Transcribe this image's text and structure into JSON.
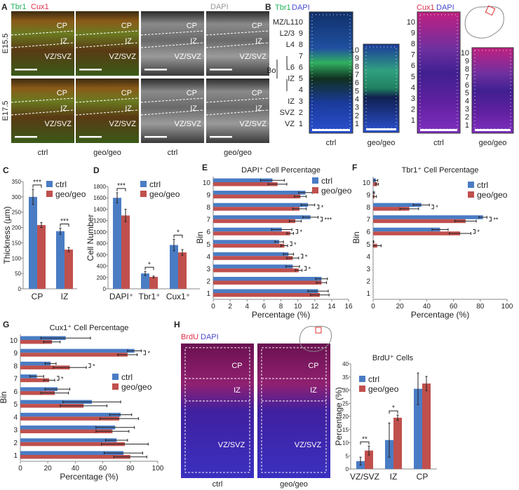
{
  "panel_labels": {
    "a": "A",
    "b": "B",
    "c": "C",
    "d": "D",
    "e": "E",
    "f": "F",
    "g": "G",
    "h": "H"
  },
  "colors": {
    "ctrl": "#4a7cc4",
    "geo": "#c0504d",
    "tbr1": "#1fb55a",
    "cux1": "#e0304a",
    "dapi": "#4a4ad0"
  },
  "panel_a": {
    "stain_tbr1": "Tbr1",
    "stain_cux1": "Cux1",
    "stain_dapi": "DAPI",
    "rows": [
      "E15.5",
      "E17.5"
    ],
    "columns": [
      "ctrl",
      "geo/geo",
      "ctrl",
      "geo/geo"
    ],
    "regions": [
      "CP",
      "IZ",
      "VZ/SVZ"
    ]
  },
  "panel_b": {
    "left_marker": "Tbr1",
    "left_counter": "DAPI",
    "right_marker": "Cux1",
    "right_counter": "DAPI",
    "layers": [
      "VZ",
      "SVZ",
      "IZ",
      "",
      "IZ",
      "L6",
      "",
      "L4",
      "L2/3",
      "MZ/L1"
    ],
    "bins": [
      "1",
      "2",
      "3",
      "4",
      "5",
      "6",
      "7",
      "8",
      "9",
      "10"
    ],
    "bracket_label": "Bo",
    "columns": [
      "ctrl",
      "geo/geo",
      "ctrl",
      "geo/geo"
    ]
  },
  "panel_h": {
    "marker": "BrdU",
    "counter": "DAPI",
    "regions": [
      "CP",
      "IZ",
      "VZ/SVZ"
    ],
    "columns": [
      "ctrl",
      "geo/geo"
    ]
  },
  "chart_data": [
    {
      "id": "C",
      "type": "bar",
      "orientation": "vertical",
      "title": "",
      "xlabel": "",
      "ylabel": "Thickness (µm)",
      "categories": [
        "CP",
        "IZ"
      ],
      "ylim": [
        0,
        350
      ],
      "yticks": [
        "0",
        "50",
        "100",
        "150",
        "200",
        "250",
        "300",
        "350"
      ],
      "series": [
        {
          "name": "ctrl",
          "values": [
            300,
            188
          ],
          "errors": [
            25,
            10
          ]
        },
        {
          "name": "geo/geo",
          "values": [
            208,
            128
          ],
          "errors": [
            8,
            7
          ]
        }
      ],
      "significance": [
        "***",
        "***"
      ],
      "legend": "top-right",
      "grid": false
    },
    {
      "id": "D",
      "type": "bar",
      "orientation": "vertical",
      "title": "",
      "xlabel": "",
      "ylabel": "Cell Number",
      "categories": [
        "DAPI⁺",
        "Tbr1⁺",
        "Cux1⁺"
      ],
      "ylim": [
        0,
        1800
      ],
      "yticks": [
        "0",
        "200",
        "400",
        "600",
        "800",
        "1000",
        "1200",
        "1400",
        "1600",
        "1800"
      ],
      "series": [
        {
          "name": "ctrl",
          "values": [
            1600,
            270,
            770
          ],
          "errors": [
            90,
            35,
            100
          ]
        },
        {
          "name": "geo/geo",
          "values": [
            1290,
            210,
            640
          ],
          "errors": [
            110,
            15,
            50
          ]
        }
      ],
      "significance": [
        "***",
        "*",
        "*"
      ],
      "legend": "top-right",
      "grid": false
    },
    {
      "id": "E",
      "type": "bar",
      "orientation": "horizontal",
      "title": "DAPI⁺ Cell Percentage",
      "xlabel": "Percentage (%)",
      "ylabel": "Bin",
      "categories": [
        "1",
        "2",
        "3",
        "4",
        "5",
        "6",
        "7",
        "8",
        "9",
        "10"
      ],
      "xlim": [
        0,
        16
      ],
      "xticks": [
        "0",
        "2",
        "4",
        "6",
        "8",
        "10",
        "12",
        "14",
        "16"
      ],
      "series": [
        {
          "name": "ctrl",
          "values": [
            12.4,
            12.8,
            9.4,
            8.9,
            7.8,
            8.1,
            11.5,
            11.2,
            10.9,
            7.0
          ],
          "errors": [
            1.2,
            0.7,
            0.8,
            0.6,
            0.5,
            1.2,
            0.9,
            0.8,
            0.8,
            1.4
          ]
        },
        {
          "name": "geo/geo",
          "values": [
            12.6,
            12.8,
            10.1,
            9.4,
            8.4,
            9.1,
            9.7,
            10.2,
            10.3,
            7.6
          ],
          "errors": [
            1.1,
            0.6,
            0.4,
            0.7,
            0.4,
            0.4,
            0.7,
            0.8,
            0.7,
            1.1
          ]
        }
      ],
      "significance": [
        "",
        "",
        "*",
        "*",
        "*",
        "*",
        "***",
        "*",
        "",
        ""
      ],
      "legend": "top-right",
      "grid": false
    },
    {
      "id": "F",
      "type": "bar",
      "orientation": "horizontal",
      "title": "Tbr1⁺ Cell Percentage",
      "xlabel": "Percentage (%)",
      "ylabel": "Bin",
      "categories": [
        "1",
        "2",
        "3",
        "4",
        "5",
        "6",
        "7",
        "8",
        "9",
        "10"
      ],
      "xlim": [
        0,
        100
      ],
      "xticks": [
        "0",
        "20",
        "40",
        "60",
        "80",
        "100"
      ],
      "series": [
        {
          "name": "ctrl",
          "values": [
            0,
            0,
            0,
            0,
            0,
            50,
            82,
            36,
            0.5,
            2
          ],
          "errors": [
            0,
            0,
            0,
            0,
            0.5,
            6,
            3,
            6,
            0.5,
            1.5
          ]
        },
        {
          "name": "geo/geo",
          "values": [
            0,
            0,
            0,
            0,
            3,
            65,
            69,
            27,
            1,
            3
          ],
          "errors": [
            0,
            0,
            0,
            0,
            3,
            8,
            8,
            7,
            1.5,
            1
          ]
        }
      ],
      "significance": [
        "",
        "",
        "",
        "",
        "",
        "*",
        "**",
        "*",
        "",
        ""
      ],
      "legend": "top-right",
      "grid": false
    },
    {
      "id": "G",
      "type": "bar",
      "orientation": "horizontal",
      "title": "Cux1⁺ Cell Percentage",
      "xlabel": "Percentage (%)",
      "ylabel": "Bin",
      "categories": [
        "1",
        "2",
        "3",
        "4",
        "5",
        "6",
        "7",
        "8",
        "9",
        "10"
      ],
      "xlim": [
        0,
        100
      ],
      "xticks": [
        "0",
        "20",
        "40",
        "60",
        "80",
        "100"
      ],
      "series": [
        {
          "name": "ctrl",
          "values": [
            75,
            70,
            69,
            73,
            52,
            27,
            12,
            22,
            83,
            33
          ],
          "errors": [
            14,
            8,
            14,
            8,
            21,
            9,
            5,
            4,
            5,
            18
          ]
        },
        {
          "name": "geo/geo",
          "values": [
            80,
            76,
            67,
            72,
            46,
            25,
            21,
            36,
            78,
            23
          ],
          "errors": [
            12,
            17,
            12,
            14,
            17,
            10,
            4,
            12,
            7,
            6
          ]
        }
      ],
      "significance": [
        "",
        "",
        "",
        "",
        "",
        "",
        "*",
        "*",
        "*",
        ""
      ],
      "legend": "center-right",
      "grid": false
    },
    {
      "id": "H",
      "type": "bar",
      "orientation": "vertical",
      "title": "BrdU⁺ Cells",
      "xlabel": "",
      "ylabel": "Percentage (%)",
      "categories": [
        "VZ/SVZ",
        "IZ",
        "CP"
      ],
      "ylim": [
        0,
        40
      ],
      "yticks": [
        "0",
        "5",
        "10",
        "15",
        "20",
        "25",
        "30",
        "35",
        "40"
      ],
      "series": [
        {
          "name": "ctrl",
          "values": [
            3,
            11,
            30.5
          ],
          "errors": [
            1.5,
            6.5,
            6
          ]
        },
        {
          "name": "geo/geo",
          "values": [
            7,
            19.5,
            32.5
          ],
          "errors": [
            1.7,
            1,
            2.7
          ]
        }
      ],
      "significance": [
        "**",
        "*",
        ""
      ],
      "legend": "top-left",
      "grid": false
    }
  ]
}
